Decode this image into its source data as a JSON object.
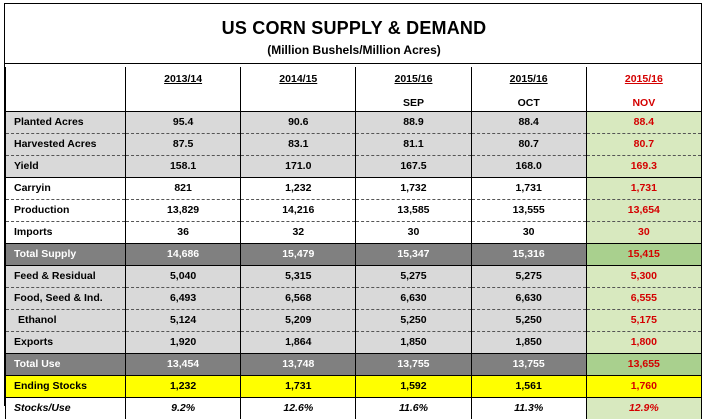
{
  "title": "US CORN SUPPLY & DEMAND",
  "subtitle": "(Million Bushels/Million Acres)",
  "columns": [
    {
      "label": "2013/14",
      "sub": ""
    },
    {
      "label": "2014/15",
      "sub": ""
    },
    {
      "label": "2015/16",
      "sub": "SEP"
    },
    {
      "label": "2015/16",
      "sub": "OCT"
    },
    {
      "label": "2015/16",
      "sub": "NOV"
    }
  ],
  "colors": {
    "grey_row": "#d9d9d9",
    "dark_row": "#808080",
    "yellow_row": "#ffff00",
    "nov_highlight": "#d8e9bf",
    "nov_text": "#d40000"
  },
  "rows": [
    {
      "label": "Planted Acres",
      "values": [
        "95.4",
        "90.6",
        "88.9",
        "88.4",
        "88.4"
      ]
    },
    {
      "label": "Harvested Acres",
      "values": [
        "87.5",
        "83.1",
        "81.1",
        "80.7",
        "80.7"
      ]
    },
    {
      "label": "Yield",
      "values": [
        "158.1",
        "171.0",
        "167.5",
        "168.0",
        "169.3"
      ]
    },
    {
      "label": "Carryin",
      "values": [
        "821",
        "1,232",
        "1,732",
        "1,731",
        "1,731"
      ]
    },
    {
      "label": "Production",
      "values": [
        "13,829",
        "14,216",
        "13,585",
        "13,555",
        "13,654"
      ]
    },
    {
      "label": "Imports",
      "values": [
        "36",
        "32",
        "30",
        "30",
        "30"
      ]
    },
    {
      "label": "Total Supply",
      "values": [
        "14,686",
        "15,479",
        "15,347",
        "15,316",
        "15,415"
      ]
    },
    {
      "label": "Feed & Residual",
      "values": [
        "5,040",
        "5,315",
        "5,275",
        "5,275",
        "5,300"
      ]
    },
    {
      "label": "Food, Seed & Ind.",
      "values": [
        "6,493",
        "6,568",
        "6,630",
        "6,630",
        "6,555"
      ]
    },
    {
      "label": " Ethanol",
      "values": [
        "5,124",
        "5,209",
        "5,250",
        "5,250",
        "5,175"
      ]
    },
    {
      "label": "Exports",
      "values": [
        "1,920",
        "1,864",
        "1,850",
        "1,850",
        "1,800"
      ]
    },
    {
      "label": "Total Use",
      "values": [
        "13,454",
        "13,748",
        "13,755",
        "13,755",
        "13,655"
      ]
    },
    {
      "label": "Ending Stocks",
      "values": [
        "1,232",
        "1,731",
        "1,592",
        "1,561",
        "1,760"
      ]
    },
    {
      "label": "Stocks/Use",
      "values": [
        "9.2%",
        "12.6%",
        "11.6%",
        "11.3%",
        "12.9%"
      ]
    }
  ]
}
